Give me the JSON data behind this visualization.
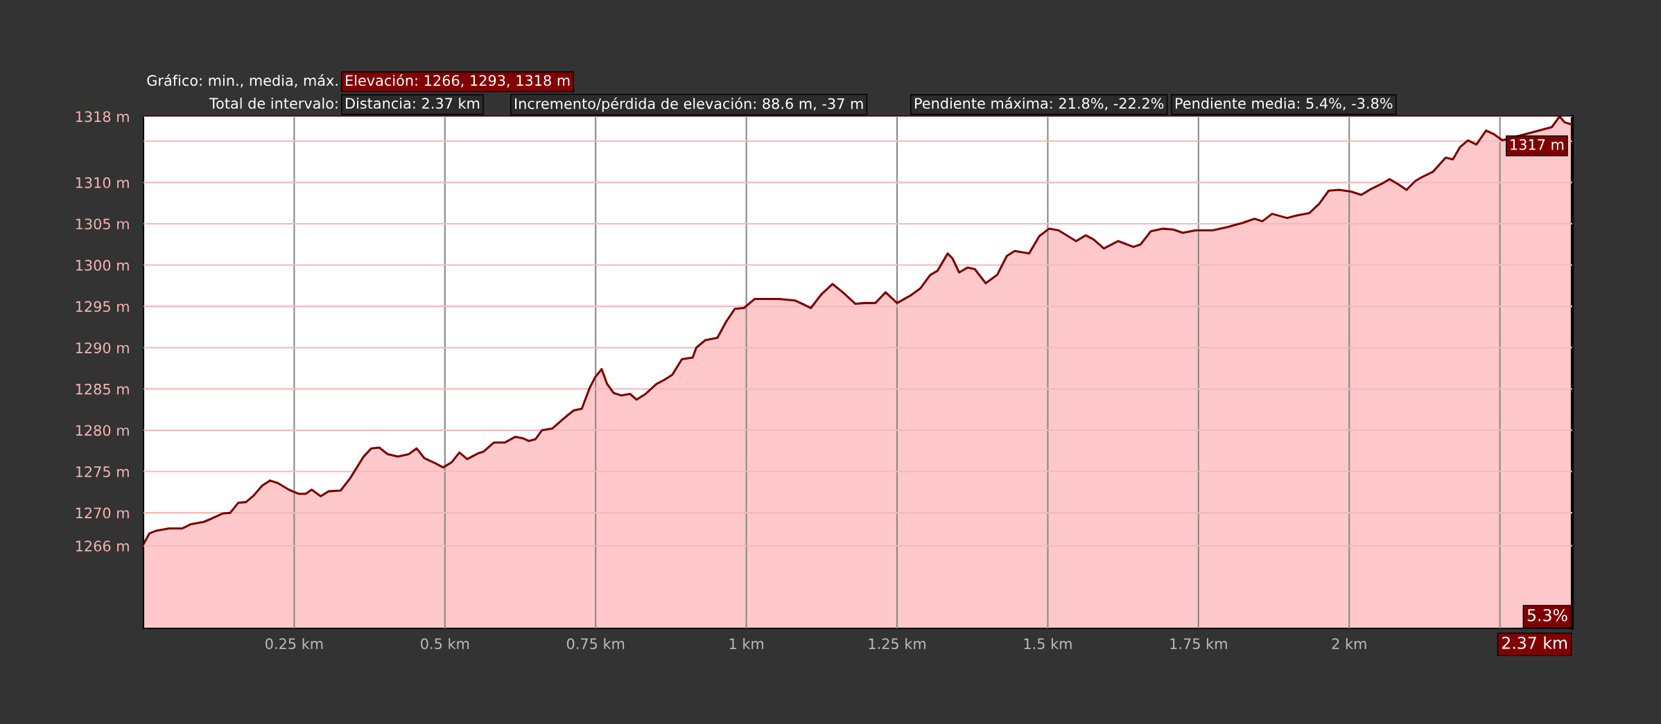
{
  "chart_data": {
    "type": "area",
    "title": "Gráfico: min., media, máx.",
    "subtitle": "Total de intervalo:",
    "annotations": [
      "Elevación: 1266, 1293, 1318 m",
      "Distancia: 2.37 km",
      "Incremento/pérdida de elevación: 88.6 m, -37 m",
      "Pendiente máxima: 21.8%, -22.2%",
      "Pendiente media: 5.4%, -3.8%",
      {
        "text": "1317 m",
        "x": 2.37,
        "y": 1317
      },
      "5.3%",
      "2.37 km"
    ],
    "xlim": [
      0,
      2.37
    ],
    "ylim": [
      1256,
      1318
    ],
    "xticks": [
      {
        "value": 0.25,
        "label": "0.25 km"
      },
      {
        "value": 0.5,
        "label": "0.5 km"
      },
      {
        "value": 0.75,
        "label": "0.75 km"
      },
      {
        "value": 1,
        "label": "1 km"
      },
      {
        "value": 1.25,
        "label": "1.25 km"
      },
      {
        "value": 1.5,
        "label": "1.5 km"
      },
      {
        "value": 1.75,
        "label": "1.75 km"
      },
      {
        "value": 2,
        "label": "2 km"
      },
      {
        "value": 2.25,
        "label": null
      }
    ],
    "yticks": [
      {
        "value": 1266,
        "label": "1266 m"
      },
      {
        "value": 1270,
        "label": "1270 m"
      },
      {
        "value": 1275,
        "label": "1275 m"
      },
      {
        "value": 1280,
        "label": "1280 m"
      },
      {
        "value": 1285,
        "label": "1285 m"
      },
      {
        "value": 1290,
        "label": "1290 m"
      },
      {
        "value": 1295,
        "label": "1295 m"
      },
      {
        "value": 1300,
        "label": "1300 m"
      },
      {
        "value": 1305,
        "label": "1305 m"
      },
      {
        "value": 1310,
        "label": "1310 m"
      },
      {
        "value": 1315,
        "label": null
      },
      {
        "value": 1318,
        "label": "1318 m"
      }
    ],
    "grid": true,
    "series": [
      {
        "color": "#7a0000",
        "x": [
          0,
          0.0097,
          0.02,
          0.042,
          0.064,
          0.078,
          0.1,
          0.113,
          0.131,
          0.144,
          0.157,
          0.17,
          0.183,
          0.197,
          0.21,
          0.223,
          0.241,
          0.257,
          0.269,
          0.279,
          0.294,
          0.307,
          0.327,
          0.343,
          0.365,
          0.378,
          0.391,
          0.405,
          0.422,
          0.44,
          0.453,
          0.466,
          0.484,
          0.497,
          0.511,
          0.524,
          0.537,
          0.555,
          0.564,
          0.581,
          0.599,
          0.617,
          0.63,
          0.639,
          0.65,
          0.661,
          0.678,
          0.692,
          0.705,
          0.714,
          0.727,
          0.74,
          0.749,
          0.76,
          0.769,
          0.78,
          0.793,
          0.807,
          0.818,
          0.833,
          0.851,
          0.864,
          0.877,
          0.893,
          0.911,
          0.917,
          0.932,
          0.952,
          0.967,
          0.981,
          0.996,
          1.014,
          1.054,
          1.081,
          1.096,
          1.107,
          1.125,
          1.143,
          1.16,
          1.181,
          1.196,
          1.214,
          1.231,
          1.25,
          1.272,
          1.289,
          1.305,
          1.317,
          1.334,
          1.342,
          1.353,
          1.367,
          1.379,
          1.397,
          1.416,
          1.432,
          1.445,
          1.469,
          1.486,
          1.502,
          1.518,
          1.547,
          1.563,
          1.576,
          1.593,
          1.617,
          1.642,
          1.654,
          1.671,
          1.691,
          1.708,
          1.724,
          1.745,
          1.773,
          1.798,
          1.823,
          1.843,
          1.856,
          1.872,
          1.897,
          1.913,
          1.934,
          1.95,
          1.966,
          1.983,
          2.003,
          2.02,
          2.036,
          2.053,
          2.067,
          2.081,
          2.095,
          2.11,
          2.122,
          2.139,
          2.16,
          2.172,
          2.184,
          2.197,
          2.211,
          2.227,
          2.241,
          2.254,
          2.336,
          2.349,
          2.357,
          2.37
        ],
        "values": [
          1266.2,
          1267.5,
          1267.8,
          1268.1,
          1268.1,
          1268.6,
          1268.9,
          1269.3,
          1269.9,
          1270.0,
          1271.2,
          1271.3,
          1272.1,
          1273.3,
          1273.9,
          1273.6,
          1272.8,
          1272.3,
          1272.3,
          1272.8,
          1272.0,
          1272.6,
          1272.7,
          1274.2,
          1276.8,
          1277.8,
          1277.9,
          1277.1,
          1276.8,
          1277.1,
          1277.8,
          1276.6,
          1276.0,
          1275.5,
          1276.1,
          1277.3,
          1276.5,
          1277.2,
          1277.4,
          1278.5,
          1278.5,
          1279.2,
          1279.0,
          1278.7,
          1278.9,
          1280.0,
          1280.2,
          1281.1,
          1281.9,
          1282.4,
          1282.6,
          1285.1,
          1286.4,
          1287.4,
          1285.6,
          1284.5,
          1284.2,
          1284.4,
          1283.7,
          1284.4,
          1285.6,
          1286.1,
          1286.7,
          1288.6,
          1288.8,
          1290.0,
          1290.9,
          1291.2,
          1293.2,
          1294.7,
          1294.8,
          1295.9,
          1295.9,
          1295.7,
          1295.2,
          1294.8,
          1296.5,
          1297.7,
          1296.7,
          1295.3,
          1295.4,
          1295.4,
          1296.7,
          1295.4,
          1296.3,
          1297.2,
          1298.8,
          1299.3,
          1301.4,
          1300.8,
          1299.1,
          1299.7,
          1299.5,
          1297.8,
          1298.8,
          1301.1,
          1301.7,
          1301.4,
          1303.5,
          1304.4,
          1304.2,
          1302.9,
          1303.6,
          1303.1,
          1302.0,
          1302.9,
          1302.2,
          1302.5,
          1304.1,
          1304.4,
          1304.3,
          1303.9,
          1304.2,
          1304.2,
          1304.6,
          1305.1,
          1305.6,
          1305.3,
          1306.2,
          1305.7,
          1306.0,
          1306.3,
          1307.4,
          1309.0,
          1309.1,
          1308.9,
          1308.5,
          1309.2,
          1309.8,
          1310.4,
          1309.8,
          1309.1,
          1310.2,
          1310.7,
          1311.3,
          1313.0,
          1312.8,
          1314.3,
          1315.1,
          1314.6,
          1316.3,
          1315.8,
          1315.1,
          1316.7,
          1318.0,
          1317.3,
          1317
        ]
      }
    ]
  }
}
